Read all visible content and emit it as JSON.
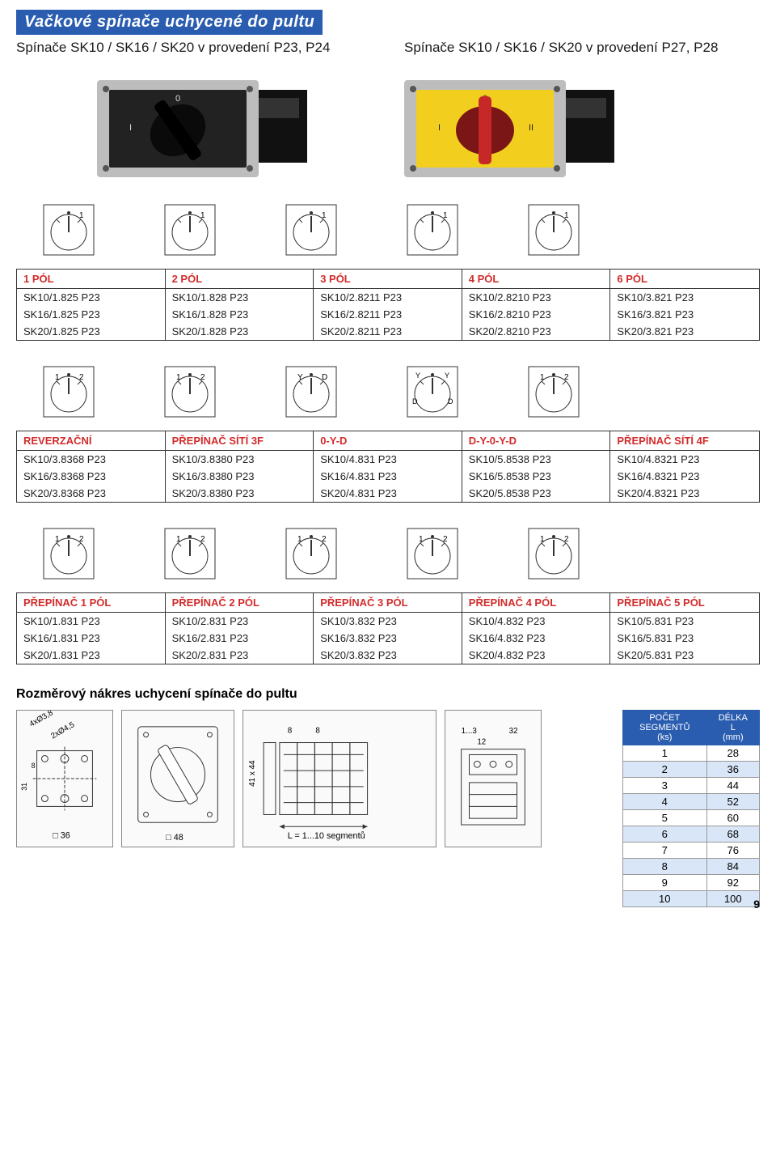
{
  "banner": "Vačkové spínače uchycené do pultu",
  "subhead_left": "Spínače SK10 / SK16 / SK20 v provedení P23, P24",
  "subhead_right": "Spínače SK10 / SK16 / SK20 v provedení P27, P28",
  "knob_photos": {
    "left": {
      "face_color": "#222222",
      "knob_color": "#111111",
      "ring_color": "#bdbdbd"
    },
    "right": {
      "face_color": "#f2cf1e",
      "knob_color": "#c62828",
      "ring_color": "#bdbdbd"
    }
  },
  "dial_labels_row1": [
    [
      "",
      "1"
    ],
    [
      "",
      "1"
    ],
    [
      "",
      "1"
    ],
    [
      "",
      "1"
    ],
    [
      "",
      "1"
    ]
  ],
  "table1": {
    "headers": [
      "1 PÓL",
      "2 PÓL",
      "3 PÓL",
      "4 PÓL",
      "6 PÓL"
    ],
    "rows": [
      [
        "SK10/1.825 P23",
        "SK10/1.828 P23",
        "SK10/2.8211 P23",
        "SK10/2.8210 P23",
        "SK10/3.821 P23"
      ],
      [
        "SK16/1.825 P23",
        "SK16/1.828 P23",
        "SK16/2.8211 P23",
        "SK16/2.8210 P23",
        "SK16/3.821 P23"
      ],
      [
        "SK20/1.825 P23",
        "SK20/1.828 P23",
        "SK20/2.8211 P23",
        "SK20/2.8210 P23",
        "SK20/3.821 P23"
      ]
    ]
  },
  "dial_labels_row2": [
    [
      "1",
      "2"
    ],
    [
      "1",
      "2"
    ],
    [
      "Y",
      "D"
    ],
    [
      "Y|D",
      "Y|D"
    ],
    [
      "1",
      "2"
    ]
  ],
  "table2": {
    "headers": [
      "REVERZAČNÍ",
      "PŘEPÍNAČ SÍTÍ 3F",
      "0-Y-D",
      "D-Y-0-Y-D",
      "PŘEPÍNAČ SÍTÍ 4F"
    ],
    "rows": [
      [
        "SK10/3.8368 P23",
        "SK10/3.8380 P23",
        "SK10/4.831 P23",
        "SK10/5.8538 P23",
        "SK10/4.8321 P23"
      ],
      [
        "SK16/3.8368 P23",
        "SK16/3.8380 P23",
        "SK16/4.831 P23",
        "SK16/5.8538 P23",
        "SK16/4.8321 P23"
      ],
      [
        "SK20/3.8368 P23",
        "SK20/3.8380 P23",
        "SK20/4.831 P23",
        "SK20/5.8538 P23",
        "SK20/4.8321 P23"
      ]
    ]
  },
  "dial_labels_row3": [
    [
      "1",
      "2"
    ],
    [
      "1",
      "2"
    ],
    [
      "1",
      "2"
    ],
    [
      "1",
      "2"
    ],
    [
      "1",
      "2"
    ]
  ],
  "table3": {
    "headers": [
      "PŘEPÍNAČ 1 PÓL",
      "PŘEPÍNAČ 2 PÓL",
      "PŘEPÍNAČ 3 PÓL",
      "PŘEPÍNAČ 4 PÓL",
      "PŘEPÍNAČ 5 PÓL"
    ],
    "rows": [
      [
        "SK10/1.831 P23",
        "SK10/2.831 P23",
        "SK10/3.832 P23",
        "SK10/4.832 P23",
        "SK10/5.831 P23"
      ],
      [
        "SK16/1.831 P23",
        "SK16/2.831 P23",
        "SK16/3.832 P23",
        "SK16/4.832 P23",
        "SK16/5.831 P23"
      ],
      [
        "SK20/1.831 P23",
        "SK20/2.831 P23",
        "SK20/3.832 P23",
        "SK20/4.832 P23",
        "SK20/5.831 P23"
      ]
    ]
  },
  "drawing_title": "Rozměrový nákres uchycení spínače do pultu",
  "drawing_labels": {
    "hole1": "4xØ3,8",
    "hole2": "2xØ4,5",
    "d8": "8",
    "d31": "31",
    "sq36": "□ 36",
    "sq48": "□ 48",
    "ax": "41 x 44",
    "top8a": "8",
    "top8b": "8",
    "segL": "L = 1...10 segmentů",
    "seg13": "1...3",
    "seg12": "12",
    "seg32": "32"
  },
  "seg_table": {
    "col1_header_top": "POČET",
    "col1_header_mid": "SEGMENTŮ",
    "col1_header_bot": "(ks)",
    "col2_header_top": "DÉLKA",
    "col2_header_mid": "L",
    "col2_header_bot": "(mm)",
    "rows": [
      [
        1,
        28
      ],
      [
        2,
        36
      ],
      [
        3,
        44
      ],
      [
        4,
        52
      ],
      [
        5,
        60
      ],
      [
        6,
        68
      ],
      [
        7,
        76
      ],
      [
        8,
        84
      ],
      [
        9,
        92
      ],
      [
        10,
        100
      ]
    ]
  },
  "page_number": "9"
}
